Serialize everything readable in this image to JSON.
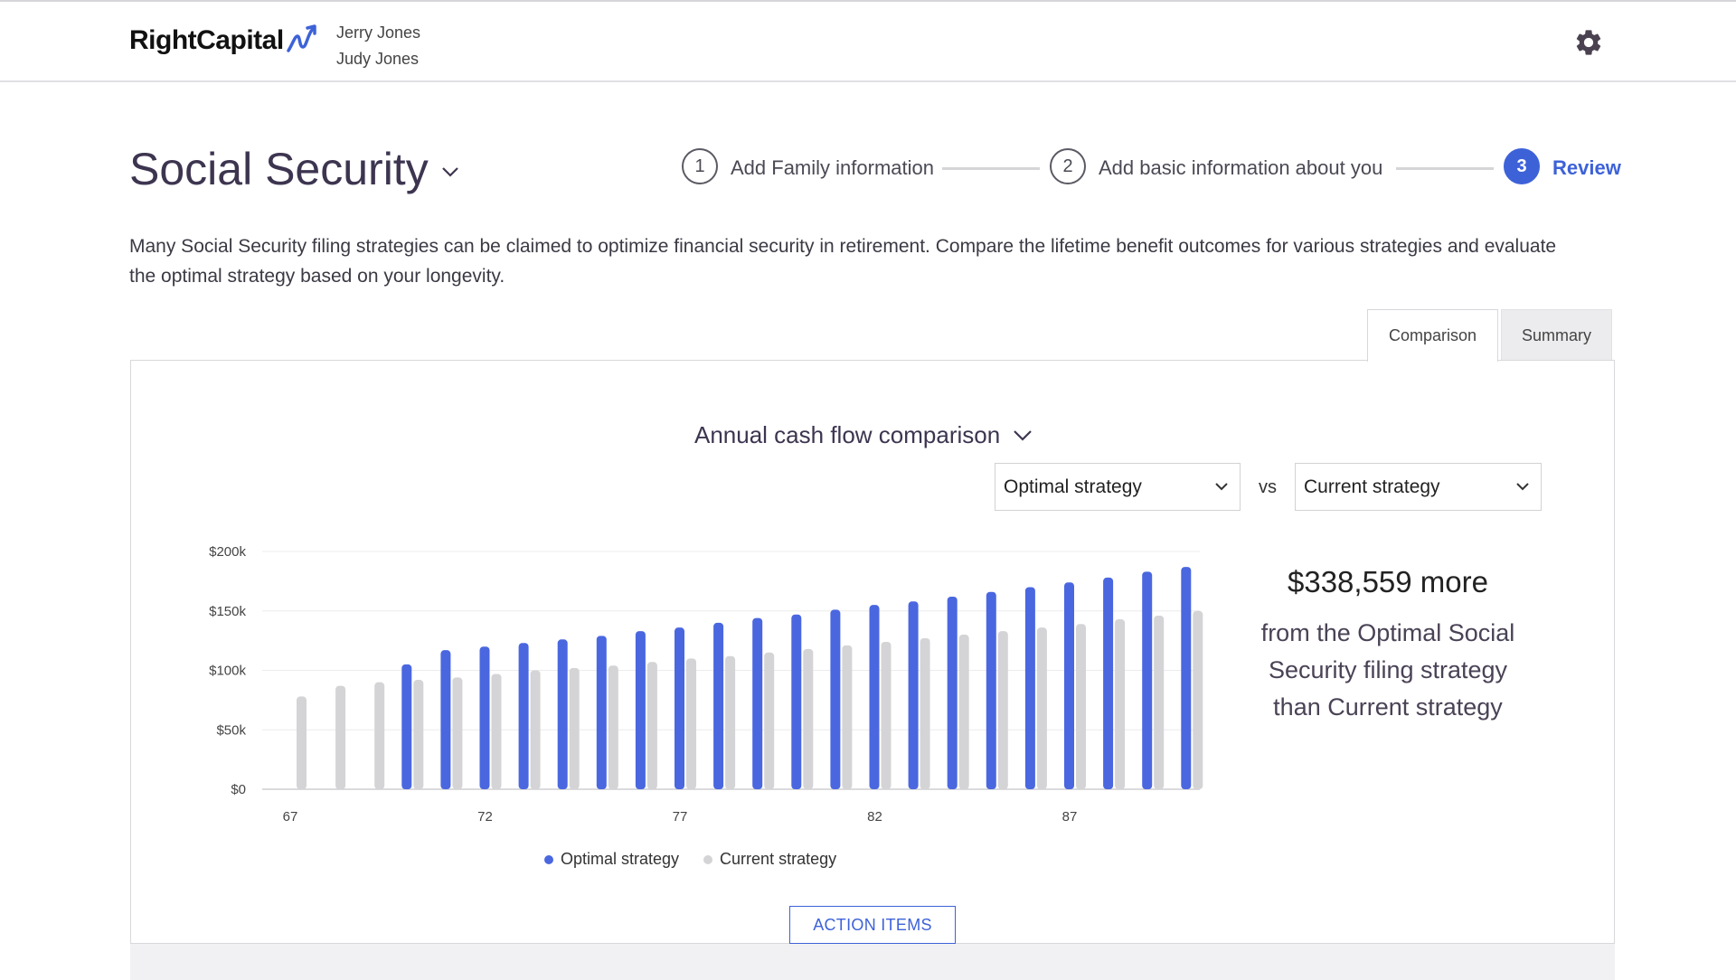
{
  "brand": {
    "logo_text": "RightCapital"
  },
  "header": {
    "client_1": "Jerry Jones",
    "client_2": "Judy Jones",
    "settings_icon": "gear-icon"
  },
  "page": {
    "title": "Social Security"
  },
  "stepper": {
    "steps": [
      {
        "number": "1",
        "label": "Add Family information"
      },
      {
        "number": "2",
        "label": "Add basic information about you"
      },
      {
        "number": "3",
        "label": "Review"
      }
    ],
    "active_step": 3
  },
  "description": "Many Social Security filing strategies can be claimed to optimize financial security in retirement. Compare the lifetime benefit outcomes for various strategies and evaluate the optimal strategy based on your longevity.",
  "tabs": {
    "comparison": "Comparison",
    "summary": "Summary"
  },
  "comparison": {
    "chart_selector": "Annual cash flow comparison",
    "strategy_a": "Optimal strategy",
    "vs": "vs",
    "strategy_b": "Current strategy"
  },
  "summary": {
    "amount_text": "$338,559 more",
    "line1": "from the Optimal Social",
    "line2": "Security filing strategy",
    "line3": "than Current strategy"
  },
  "action_button": "ACTION ITEMS",
  "colors": {
    "accent": "#3d62d8",
    "optimal": "#4a67e0",
    "current": "#d4d4d6",
    "title": "#3d3550"
  },
  "chart_data": {
    "type": "bar",
    "x": [
      67,
      68,
      69,
      70,
      71,
      72,
      73,
      74,
      75,
      76,
      77,
      78,
      79,
      80,
      81,
      82,
      83,
      84,
      85,
      86,
      87,
      88,
      89,
      90
    ],
    "x_tick_labels": [
      "67",
      "72",
      "77",
      "82",
      "87"
    ],
    "y_tick_labels": [
      "$0",
      "$50k",
      "$100k",
      "$150k",
      "$200k"
    ],
    "ylim": [
      0,
      200000
    ],
    "grid": true,
    "legend_position": "bottom",
    "series": [
      {
        "name": "Optimal strategy",
        "color": "#4a67e0",
        "values": [
          0,
          0,
          0,
          105000,
          117000,
          120000,
          123000,
          126000,
          129000,
          133000,
          136000,
          140000,
          144000,
          147000,
          151000,
          155000,
          158000,
          162000,
          166000,
          170000,
          174000,
          178000,
          183000,
          187000
        ]
      },
      {
        "name": "Current strategy",
        "color": "#d4d4d6",
        "values": [
          78000,
          87000,
          90000,
          92000,
          94000,
          97000,
          100000,
          102000,
          104000,
          107000,
          110000,
          112000,
          115000,
          118000,
          121000,
          124000,
          127000,
          130000,
          133000,
          136000,
          139000,
          143000,
          146000,
          150000
        ]
      }
    ]
  }
}
